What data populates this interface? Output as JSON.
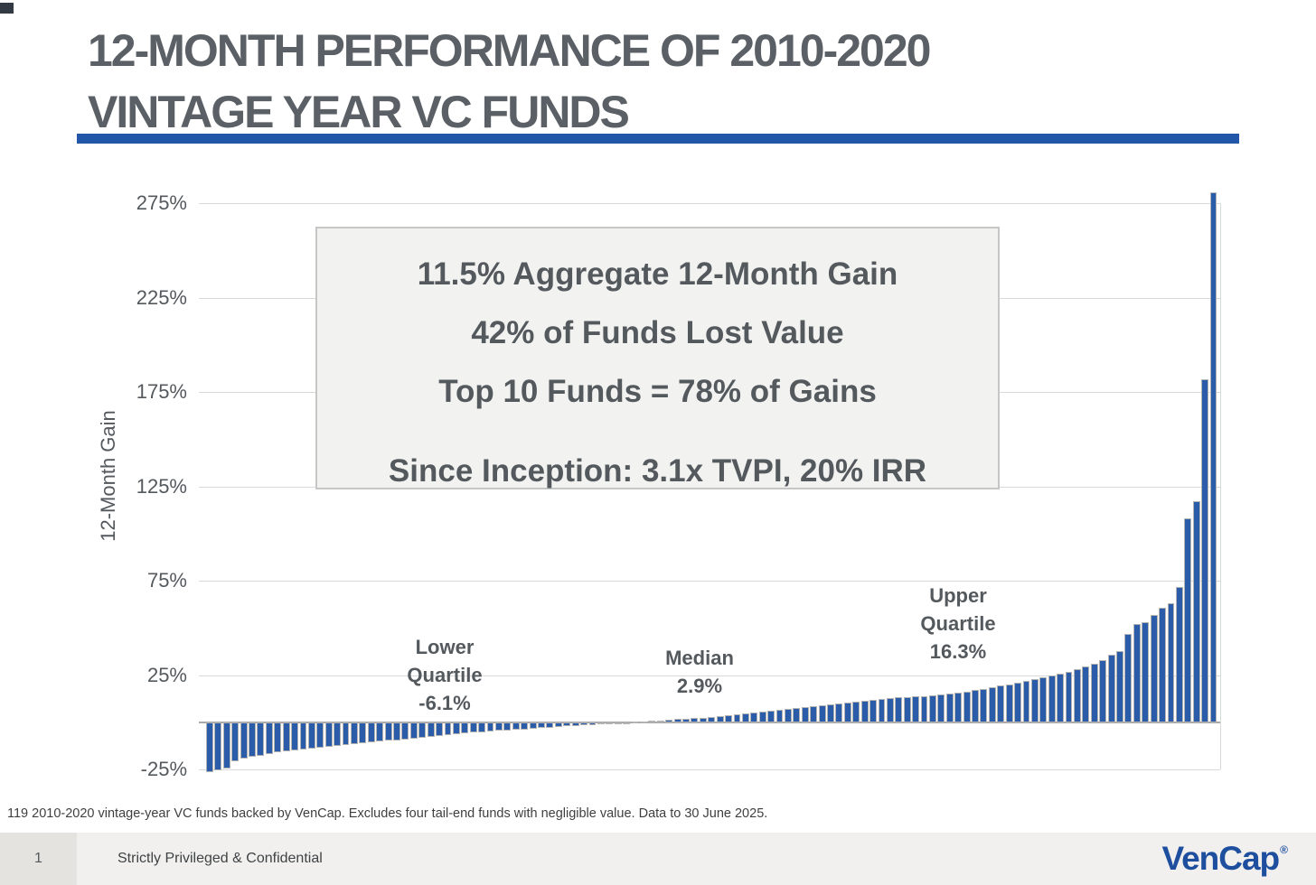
{
  "slide": {
    "title_line1": "12-MONTH PERFORMANCE OF 2010-2020",
    "title_line2": "VINTAGE YEAR VC FUNDS",
    "accent_color": "#2156a8",
    "title_color": "#5a6065"
  },
  "stats_box": {
    "lines": [
      "11.5% Aggregate 12-Month Gain",
      "42% of Funds Lost Value",
      "Top 10 Funds = 78% of Gains",
      "Since Inception: 3.1x TVPI, 20% IRR"
    ]
  },
  "annotations": [
    {
      "id": "lower-quartile",
      "lines": [
        "Lower",
        "Quartile",
        "-6.1%"
      ]
    },
    {
      "id": "median",
      "lines": [
        "Median",
        "2.9%"
      ]
    },
    {
      "id": "upper-quartile",
      "lines": [
        "Upper",
        "Quartile",
        "16.3%"
      ]
    }
  ],
  "footnote": "119 2010-2020 vintage-year VC funds backed by VenCap.  Excludes four tail-end funds with negligible value.  Data to 30 June 2025.",
  "footer": {
    "page_number": "1",
    "confidentiality": "Strictly Privileged & Confidential",
    "logo_text": "VenCap",
    "logo_registered_mark": "®",
    "logo_color": "#1d4f9e"
  },
  "chart_data": {
    "type": "bar",
    "title": "",
    "xlabel": "",
    "ylabel": "12-Month Gain",
    "x_description": "119 individual VC funds sorted ascending by 12-month gain (no x tick labels shown)",
    "y_tick_suffix": "%",
    "y_ticks_pct": [
      275,
      225,
      175,
      125,
      75,
      25,
      -25
    ],
    "ylim_pct": [
      -30,
      290
    ],
    "grid": "horizontal",
    "legend": "none",
    "bar_color": "#2a5caa",
    "bar_border_color": "#b3b3b3",
    "values_pct": [
      -26.3,
      -25.5,
      -24.5,
      -20.6,
      -19,
      -18,
      -17.5,
      -16.7,
      -15.8,
      -15.3,
      -14.8,
      -14.3,
      -13.9,
      -13.4,
      -12.9,
      -12.4,
      -11.9,
      -11.4,
      -11,
      -10.6,
      -10.2,
      -9.8,
      -9.4,
      -9,
      -8.6,
      -8.2,
      -7.8,
      -7.2,
      -6.6,
      -6.1,
      -5.7,
      -5.4,
      -5.1,
      -4.8,
      -4.5,
      -4.2,
      -3.9,
      -3.6,
      -3.3,
      -3,
      -2.7,
      -2.4,
      -2.1,
      -1.8,
      -1.5,
      -1.2,
      -0.9,
      -0.6,
      -0.4,
      -0.2,
      0.2,
      0.5,
      0.8,
      1.1,
      1.4,
      1.7,
      2,
      2.3,
      2.6,
      2.9,
      3.3,
      3.7,
      4.1,
      4.6,
      5.1,
      5.6,
      6.1,
      6.6,
      7.1,
      7.6,
      8.1,
      8.6,
      9.1,
      9.6,
      10.1,
      10.6,
      11.1,
      11.6,
      12.1,
      12.6,
      13,
      13.3,
      13.5,
      13.7,
      14,
      14.4,
      14.9,
      15.3,
      15.8,
      16.3,
      17,
      17.8,
      18.6,
      19.4,
      20.2,
      21,
      21.9,
      22.8,
      23.8,
      24.8,
      25.8,
      27,
      28,
      29.5,
      31,
      33,
      36,
      38,
      47,
      52,
      53,
      57,
      61,
      63,
      72,
      108,
      117,
      182,
      281
    ],
    "summary_stats": {
      "fund_count": 119,
      "aggregate_12m_gain_pct": 11.5,
      "pct_of_funds_lost_value": 42,
      "top_10_funds_share_of_gains_pct": 78,
      "since_inception_tvpi_x": 3.1,
      "since_inception_irr_pct": 20,
      "lower_quartile_pct": -6.1,
      "median_pct": 2.9,
      "upper_quartile_pct": 16.3
    }
  }
}
